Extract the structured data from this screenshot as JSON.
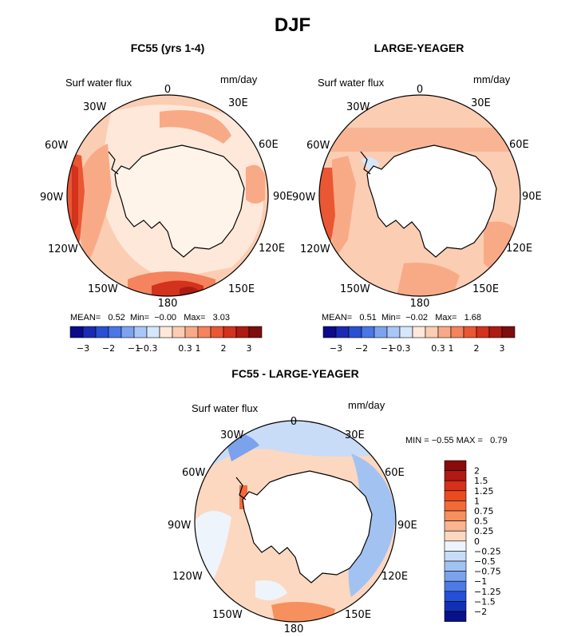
{
  "figure": {
    "title": "DJF"
  },
  "chart_data": [
    {
      "type": "heatmap",
      "projection": "south-polar-stereographic",
      "title": "FC55 (yrs 1-4)",
      "field_label": "Surf water flux",
      "units": "mm/day",
      "longitude_labels": [
        "0",
        "30E",
        "60E",
        "90E",
        "120E",
        "150E",
        "180",
        "150W",
        "120W",
        "90W",
        "60W",
        "30W"
      ],
      "stats": {
        "mean_label": "MEAN=",
        "mean": "0.52",
        "min_label": "Min=",
        "min": "−0.00",
        "max_label": "Max=",
        "max": "3.03"
      },
      "colorbar_ticks": [
        "−3",
        "−2",
        "−1",
        "−0.3",
        "0.3",
        "1",
        "2",
        "3"
      ],
      "colorbar_colors": [
        "#0a0a8a",
        "#1a2ab4",
        "#2850d2",
        "#4a76e6",
        "#7da3ef",
        "#a8c6f6",
        "#d6e7fb",
        "#fde8da",
        "#fbcdb2",
        "#f8aa87",
        "#f4835e",
        "#ea5733",
        "#d3321d",
        "#ad1b12",
        "#7e0d0d"
      ]
    },
    {
      "type": "heatmap",
      "projection": "south-polar-stereographic",
      "title": "LARGE-YEAGER",
      "field_label": "Surf water flux",
      "units": "mm/day",
      "longitude_labels": [
        "0",
        "30E",
        "60E",
        "90E",
        "120E",
        "150E",
        "180",
        "150W",
        "120W",
        "90W",
        "60W",
        "30W"
      ],
      "stats": {
        "mean_label": "MEAN=",
        "mean": "0.51",
        "min_label": "Min=",
        "min": "−0.02",
        "max_label": "Max=",
        "max": "1.68"
      },
      "colorbar_ticks": [
        "−3",
        "−2",
        "−1",
        "−0.3",
        "0.3",
        "1",
        "2",
        "3"
      ],
      "colorbar_colors": [
        "#0a0a8a",
        "#1a2ab4",
        "#2850d2",
        "#4a76e6",
        "#7da3ef",
        "#a8c6f6",
        "#d6e7fb",
        "#fde8da",
        "#fbcdb2",
        "#f8aa87",
        "#f4835e",
        "#ea5733",
        "#d3321d",
        "#ad1b12",
        "#7e0d0d"
      ]
    },
    {
      "type": "heatmap",
      "projection": "south-polar-stereographic",
      "title": "FC55 - LARGE-YEAGER",
      "field_label": "Surf water flux",
      "units": "mm/day",
      "longitude_labels": [
        "0",
        "30E",
        "60E",
        "90E",
        "120E",
        "150E",
        "180",
        "150W",
        "120W",
        "90W",
        "60W",
        "30W"
      ],
      "stats": {
        "min_label": "MIN =",
        "min": "−0.55",
        "max_label": "MAX =",
        "max": "0.79"
      },
      "colorbar_ticks": [
        "2",
        "1.5",
        "1.25",
        "1",
        "0.75",
        "0.5",
        "0.25",
        "0",
        "−0.25",
        "−0.5",
        "−0.75",
        "−1",
        "−1.25",
        "−1.5",
        "−2"
      ],
      "colorbar_colors": [
        "#8b0a0a",
        "#b01a12",
        "#d4301a",
        "#ea4a22",
        "#f26a3a",
        "#f6905e",
        "#f9b490",
        "#fcd8c0",
        "#eef4fb",
        "#c8dcf8",
        "#a2c2f2",
        "#7ba2ec",
        "#4d7ae4",
        "#2450d6",
        "#1230b4",
        "#08108a"
      ]
    }
  ]
}
